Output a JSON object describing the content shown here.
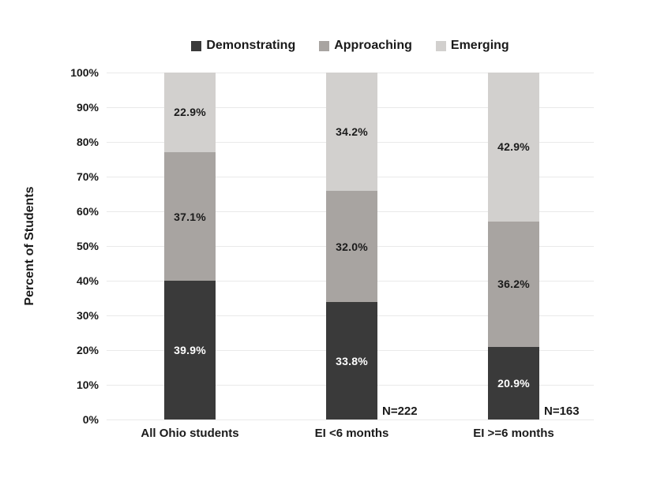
{
  "chart_data": {
    "type": "bar",
    "stacked": true,
    "ylabel": "Percent of Students",
    "ylim": [
      0,
      100
    ],
    "ytick_step": 10,
    "ytick_labels": [
      "100%",
      "90%",
      "80%",
      "70%",
      "60%",
      "50%",
      "40%",
      "30%",
      "20%",
      "10%",
      "0%"
    ],
    "grid": true,
    "legend_position": "top",
    "categories": [
      "All Ohio students",
      "EI <6 months",
      "EI >=6 months"
    ],
    "series": [
      {
        "name": "Demonstrating",
        "values": [
          39.9,
          33.8,
          20.9
        ],
        "labels": [
          "39.9%",
          "33.8%",
          "20.9%"
        ],
        "color": "#3a3a3a",
        "label_color": "#ffffff"
      },
      {
        "name": "Approaching",
        "values": [
          37.1,
          32.0,
          36.2
        ],
        "labels": [
          "37.1%",
          "32.0%",
          "36.2%"
        ],
        "color": "#a8a4a1",
        "label_color": "#1b1b1b"
      },
      {
        "name": "Emerging",
        "values": [
          22.9,
          34.2,
          42.9
        ],
        "labels": [
          "22.9%",
          "34.2%",
          "42.9%"
        ],
        "color": "#d2d0ce",
        "label_color": "#1b1b1b"
      }
    ],
    "annotations": [
      {
        "text": "N=222",
        "category_index": 1
      },
      {
        "text": "N=163",
        "category_index": 2
      }
    ]
  },
  "colors": {
    "background": "#ffffff",
    "gridline": "#e9e9e9",
    "text": "#1a1a1a"
  }
}
